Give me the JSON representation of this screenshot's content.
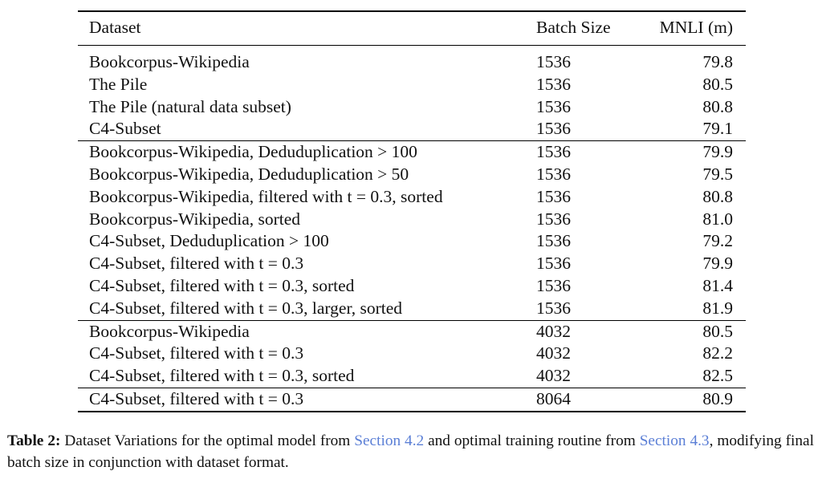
{
  "table": {
    "headers": [
      "Dataset",
      "Batch Size",
      "MNLI (m)"
    ],
    "groups": [
      [
        [
          "Bookcorpus-Wikipedia",
          "1536",
          "79.8"
        ],
        [
          "The Pile",
          "1536",
          "80.5"
        ],
        [
          "The Pile (natural data subset)",
          "1536",
          "80.8"
        ],
        [
          "C4-Subset",
          "1536",
          "79.1"
        ]
      ],
      [
        [
          "Bookcorpus-Wikipedia, Deduduplication > 100",
          "1536",
          "79.9"
        ],
        [
          "Bookcorpus-Wikipedia, Deduduplication > 50",
          "1536",
          "79.5"
        ],
        [
          "Bookcorpus-Wikipedia, filtered with t = 0.3, sorted",
          "1536",
          "80.8"
        ],
        [
          "Bookcorpus-Wikipedia, sorted",
          "1536",
          "81.0"
        ],
        [
          "C4-Subset, Deduduplication > 100",
          "1536",
          "79.2"
        ],
        [
          "C4-Subset, filtered with t = 0.3",
          "1536",
          "79.9"
        ],
        [
          "C4-Subset, filtered with t = 0.3, sorted",
          "1536",
          "81.4"
        ],
        [
          "C4-Subset, filtered with t = 0.3, larger, sorted",
          "1536",
          "81.9"
        ]
      ],
      [
        [
          "Bookcorpus-Wikipedia",
          "4032",
          "80.5"
        ],
        [
          "C4-Subset, filtered with t = 0.3",
          "4032",
          "82.2"
        ],
        [
          "C4-Subset, filtered with t = 0.3, sorted",
          "4032",
          "82.5"
        ]
      ],
      [
        [
          "C4-Subset, filtered with t = 0.3",
          "8064",
          "80.9"
        ]
      ]
    ]
  },
  "caption": {
    "label": "Table 2:",
    "text_1": "Dataset Variations for the optimal model from",
    "link_1": "Section 4.2",
    "text_2": "and optimal training routine from",
    "link_2": "Section 4.3",
    "text_3": ", modifying final batch size in conjunction with dataset format.",
    "colors": {
      "link": "#5b7fd6"
    }
  }
}
